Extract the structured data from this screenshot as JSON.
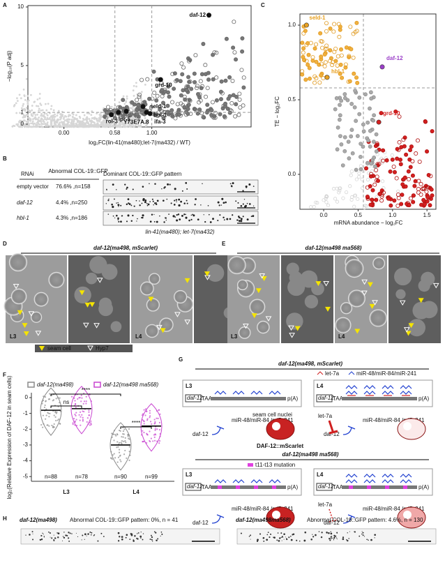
{
  "A": {
    "letter": "A",
    "ylabel": "−log₁₀(P adj)",
    "xlabel": "log₂FC(lin-41(ma480);let-7(ma432) / WT)",
    "xlim": [
      -0.41,
      2.13
    ],
    "ylim": [
      -0.24,
      10.12
    ],
    "xticks": [
      {
        "value": 0,
        "label": "0.00"
      },
      0.58,
      {
        "value": 1,
        "label": "1.00"
      }
    ],
    "yticks": [
      0,
      1,
      5,
      10
    ],
    "genes": [
      {
        "name": "daf-12",
        "x": 1.65,
        "y": 9.3
      },
      {
        "name": "grd-10",
        "x": 1.1,
        "y": 3.8
      },
      {
        "name": "seld-1",
        "x": 0.9,
        "y": 1.5
      },
      {
        "name": "lpr-5",
        "x": 0.62,
        "y": 1.0
      },
      {
        "name": "rol-3",
        "x": 0.54,
        "y": 0.8
      },
      {
        "name": "Y73E7A.8",
        "x": 0.71,
        "y": 1.1
      },
      {
        "name": "hbl-1",
        "x": 0.94,
        "y": 1.0
      },
      {
        "name": "ifa-3",
        "x": 0.98,
        "y": 0.9
      }
    ]
  },
  "B": {
    "letter": "B",
    "headers": [
      "RNAi",
      "Abnormal COL-19::GFP",
      "Dominant COL-19::GFP pattern"
    ],
    "rows": [
      [
        "empty vector",
        "76.6% ,n=158"
      ],
      [
        "daf-12",
        "4.4% ,n=250"
      ],
      [
        "hbl-1",
        "4.3% ,n=186"
      ]
    ],
    "caption": "lin-41(ma480); let-7(ma432)"
  },
  "C": {
    "letter": "C",
    "ylabel": "TE − log₂FC",
    "xlabel": "mRNA abundance − log₂FC",
    "xlim": [
      -0.345,
      1.63
    ],
    "ylim": [
      -0.234,
      1.075
    ],
    "xticks": [
      {
        "value": 0,
        "label": "0.0"
      },
      0.5,
      {
        "value": 1,
        "label": "1.0"
      },
      1.5
    ],
    "yticks": [
      {
        "value": 0,
        "label": "0.0"
      },
      0.5,
      {
        "value": 1,
        "label": "1.0"
      }
    ],
    "genes": [
      {
        "name": "seld-1",
        "x": -0.25,
        "y": 1.0,
        "color": "#e8a020"
      },
      {
        "name": "daf-12",
        "x": 0.85,
        "y": 0.72,
        "color": "#9a3ec8"
      },
      {
        "name": "hbl-1",
        "x": 0.05,
        "y": 0.65,
        "color": "#e8a020"
      },
      {
        "name": "grd-10",
        "x": 0.8,
        "y": 0.35,
        "color": "#d42020"
      }
    ]
  },
  "D": {
    "letter": "D",
    "title": "daf-12(ma498, mScarlet)",
    "stages": [
      "L3",
      "L4"
    ],
    "legend": [
      "seam cell",
      "Hyp7"
    ]
  },
  "E": {
    "letter": "E",
    "title": "daf-12(ma498 ma568)",
    "stages": [
      "L3",
      "L4"
    ]
  },
  "F": {
    "letter": "F",
    "ylabel": "log₂(Relative Expression of DAF-12 in seam cells)",
    "categories": [
      "L3",
      "L4"
    ],
    "ylim": [
      -5.3,
      0.31
    ],
    "yticks": [
      0,
      -1,
      -2,
      -3,
      -4,
      -5
    ],
    "series": [
      {
        "name": "daf-12(ma498)",
        "color": "#8a8a8a",
        "values": [
          -0.8,
          -3.0
        ]
      },
      {
        "name": "daf-12(ma498 ma568)",
        "color": "#c844d0",
        "values": [
          -0.7,
          -1.8
        ]
      }
    ],
    "n_labels": [
      [
        "n=88",
        "n=78"
      ],
      [
        "n=90",
        "n=99"
      ]
    ],
    "significance": [
      "ns",
      "****",
      "****"
    ]
  },
  "G": {
    "letter": "G",
    "title1": "daf-12(ma498, mScarlet)",
    "title2": "daf-12(ma498 ma568)",
    "legend": [
      "let-7a",
      "miR-48/miR-84/miR-241"
    ],
    "mutation": "t11-t13 mutation",
    "stages": [
      "L3",
      "L4"
    ],
    "gene": "daf-12",
    "stop": "TAA",
    "polyA": "p(A)",
    "mirs": "miR-48/miR-84 /miR-241",
    "let7": "let-7a",
    "nuclei": "seam cell nuclei",
    "protein": "DAF-12::mScarlet"
  },
  "H": {
    "letter": "H",
    "items": [
      [
        "daf-12(ma498)",
        "Abnormal COL-19::GFP pattern: 0%, n = 41"
      ],
      [
        "daf-12(ma498ma568)",
        "Abnormal COL-19::GFP pattern: 4.6%, n = 130"
      ]
    ]
  }
}
